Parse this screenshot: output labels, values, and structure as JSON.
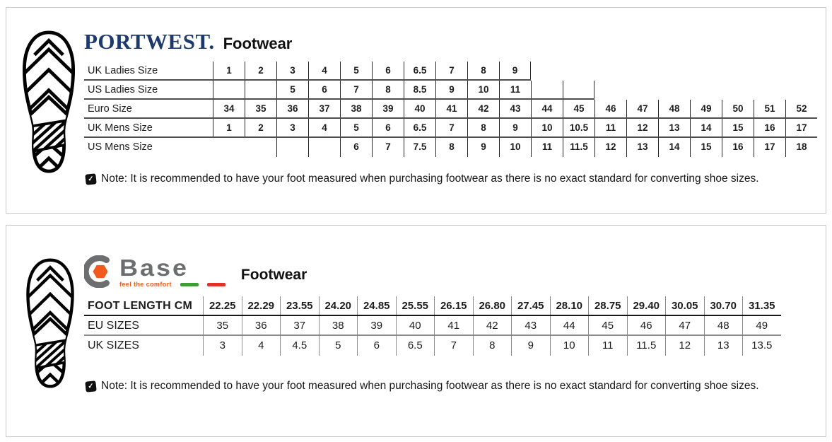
{
  "panels": [
    {
      "id": "portwest",
      "logo": {
        "brand": "PORTWEST.",
        "color": "#1e3a6d"
      },
      "title": "Footwear",
      "size_table": {
        "rows": [
          {
            "label": "UK Ladies Size",
            "cells": [
              "1",
              "2",
              "3",
              "4",
              "5",
              "6",
              "6.5",
              "7",
              "8",
              "9",
              null,
              null,
              null,
              null,
              null,
              null,
              null,
              null,
              null
            ]
          },
          {
            "label": "US Ladies Size",
            "cells": [
              "",
              "",
              "5",
              "6",
              "7",
              "8",
              "8.5",
              "9",
              "10",
              "11",
              "",
              "",
              null,
              null,
              null,
              null,
              null,
              null,
              null
            ]
          },
          {
            "label": "Euro Size",
            "cells": [
              "34",
              "35",
              "36",
              "37",
              "38",
              "39",
              "40",
              "41",
              "42",
              "43",
              "44",
              "45",
              "46",
              "47",
              "48",
              "49",
              "50",
              "51",
              "52"
            ]
          },
          {
            "label": "UK Mens Size",
            "cells": [
              "1",
              "2",
              "3",
              "4",
              "5",
              "6",
              "6.5",
              "7",
              "8",
              "9",
              "10",
              "10.5",
              "11",
              "12",
              "13",
              "14",
              "15",
              "16",
              "17"
            ]
          },
          {
            "label": "US Mens Size",
            "cells": [
              null,
              null,
              "",
              "",
              "6",
              "7",
              "7.5",
              "8",
              "9",
              "10",
              "11",
              "11.5",
              "12",
              "13",
              "14",
              "15",
              "16",
              "17",
              "18"
            ]
          }
        ]
      },
      "note": "Note: It is recommended to have your foot measured when purchasing footwear as there is no exact standard for converting shoe sizes."
    },
    {
      "id": "base",
      "logo": {
        "brand": "Base",
        "tagline": "feel the comfort",
        "gray": "#6d6e70",
        "orange": "#f05a1e",
        "flag_green": "#3f9c35",
        "flag_red": "#e03228"
      },
      "title": "Footwear",
      "size_table": {
        "rows": [
          {
            "label": "FOOT LENGTH CM",
            "cells": [
              "22.25",
              "22.29",
              "23.55",
              "24.20",
              "24.85",
              "25.55",
              "26.15",
              "26.80",
              "27.45",
              "28.10",
              "28.75",
              "29.40",
              "30.05",
              "30.70",
              "31.35"
            ]
          },
          {
            "label": "EU SIZES",
            "cells": [
              "35",
              "36",
              "37",
              "38",
              "39",
              "40",
              "41",
              "42",
              "43",
              "44",
              "45",
              "46",
              "47",
              "48",
              "49"
            ]
          },
          {
            "label": "UK SIZES",
            "cells": [
              "3",
              "4",
              "4.5",
              "5",
              "6",
              "6.5",
              "7",
              "8",
              "9",
              "10",
              "11",
              "11.5",
              "12",
              "13",
              "13.5"
            ]
          }
        ]
      },
      "note": "Note: It is recommended to have your foot measured when purchasing footwear as there is no exact standard for converting shoe sizes."
    }
  ],
  "note_icon": "✓"
}
